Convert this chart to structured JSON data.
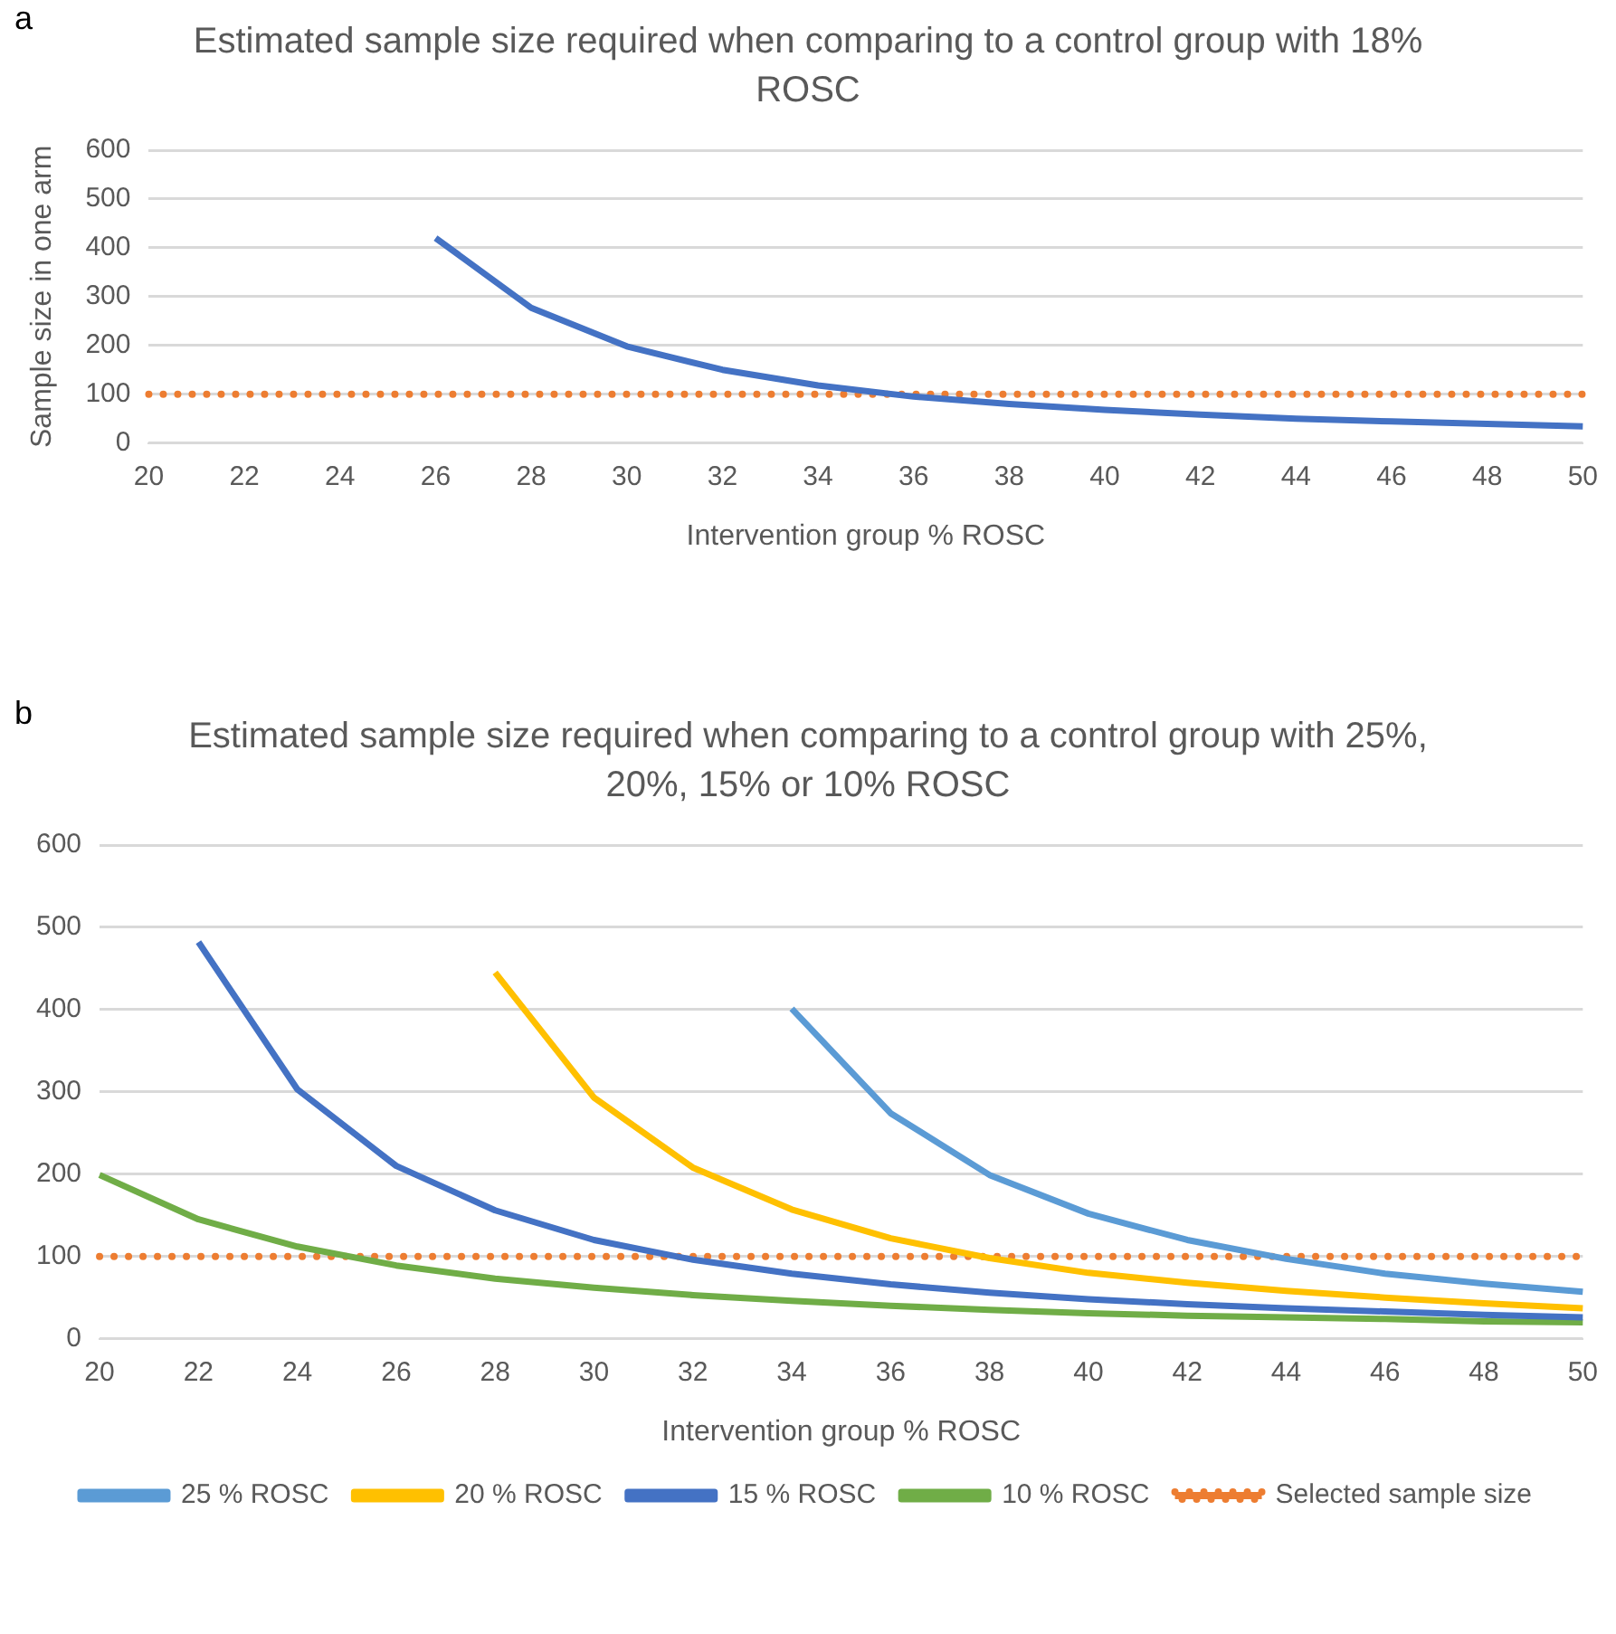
{
  "chart_data": [
    {
      "type": "line",
      "annotations": [
        "a"
      ],
      "title": "Estimated sample size required when comparing to a control group with 18% ROSC",
      "xlabel": "Intervention group % ROSC",
      "ylabel": "Sample size in one arm",
      "categories": [
        "20",
        "22",
        "24",
        "26",
        "28",
        "30",
        "32",
        "34",
        "36",
        "38",
        "40",
        "42",
        "44",
        "46",
        "48",
        "50"
      ],
      "series": [
        {
          "color": "#4472c4",
          "values": [
            null,
            null,
            null,
            420,
            277,
            198,
            150,
            118,
            95,
            80,
            68,
            58,
            50,
            44,
            39,
            34
          ]
        },
        {
          "color": "#ed7d31",
          "line_style": "dotted",
          "values": [
            100,
            100,
            100,
            100,
            100,
            100,
            100,
            100,
            100,
            100,
            100,
            100,
            100,
            100,
            100,
            100
          ]
        }
      ],
      "ylim": [
        0,
        600
      ],
      "yticks": [
        0,
        100,
        200,
        300,
        400,
        500,
        600
      ],
      "grid": "y",
      "marker": "none",
      "legend": false
    },
    {
      "type": "line",
      "annotations": [
        "b"
      ],
      "title": "Estimated sample size required when comparing to a control group with 25%, 20%, 15% or 10% ROSC",
      "xlabel": "Intervention group % ROSC",
      "categories": [
        "20",
        "22",
        "24",
        "26",
        "28",
        "30",
        "32",
        "34",
        "36",
        "38",
        "40",
        "42",
        "44",
        "46",
        "48",
        "50"
      ],
      "series": [
        {
          "name": "25 % ROSC",
          "color": "#5b9bd5",
          "values": [
            null,
            null,
            null,
            null,
            null,
            null,
            null,
            401,
            274,
            199,
            152,
            120,
            97,
            79,
            67,
            57
          ]
        },
        {
          "name": "20 % ROSC",
          "color": "#ffc000",
          "values": [
            null,
            null,
            null,
            null,
            445,
            293,
            208,
            157,
            122,
            98,
            80,
            68,
            58,
            50,
            43,
            37
          ]
        },
        {
          "name": "15 % ROSC",
          "color": "#4472c4",
          "values": [
            null,
            482,
            303,
            210,
            156,
            120,
            96,
            79,
            66,
            56,
            48,
            42,
            37,
            33,
            29,
            26
          ]
        },
        {
          "name": "10 % ROSC",
          "color": "#70ad47",
          "values": [
            199,
            145,
            112,
            89,
            73,
            62,
            53,
            46,
            40,
            35,
            31,
            28,
            26,
            24,
            21,
            20
          ]
        },
        {
          "name": "Selected sample size",
          "color": "#ed7d31",
          "line_style": "dotted",
          "values": [
            100,
            100,
            100,
            100,
            100,
            100,
            100,
            100,
            100,
            100,
            100,
            100,
            100,
            100,
            100,
            100
          ]
        }
      ],
      "ylim": [
        0,
        600
      ],
      "yticks": [
        0,
        100,
        200,
        300,
        400,
        500,
        600
      ],
      "grid": "y",
      "marker": "none",
      "legend": "bottom"
    }
  ]
}
